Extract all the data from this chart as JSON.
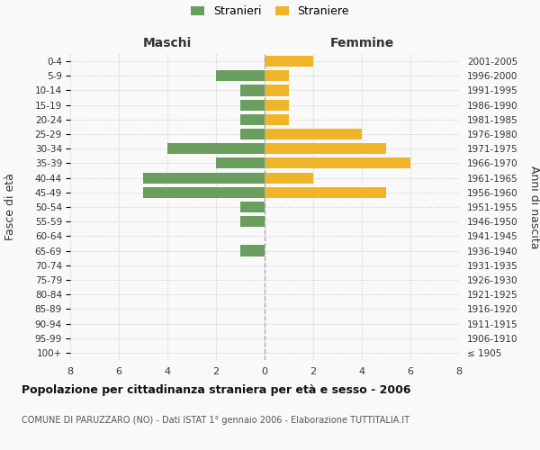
{
  "age_groups": [
    "100+",
    "95-99",
    "90-94",
    "85-89",
    "80-84",
    "75-79",
    "70-74",
    "65-69",
    "60-64",
    "55-59",
    "50-54",
    "45-49",
    "40-44",
    "35-39",
    "30-34",
    "25-29",
    "20-24",
    "15-19",
    "10-14",
    "5-9",
    "0-4"
  ],
  "birth_years": [
    "≤ 1905",
    "1906-1910",
    "1911-1915",
    "1916-1920",
    "1921-1925",
    "1926-1930",
    "1931-1935",
    "1936-1940",
    "1941-1945",
    "1946-1950",
    "1951-1955",
    "1956-1960",
    "1961-1965",
    "1966-1970",
    "1971-1975",
    "1976-1980",
    "1981-1985",
    "1986-1990",
    "1991-1995",
    "1996-2000",
    "2001-2005"
  ],
  "males": [
    0,
    0,
    0,
    0,
    0,
    0,
    0,
    1,
    0,
    1,
    1,
    5,
    5,
    2,
    4,
    1,
    1,
    1,
    1,
    2,
    0
  ],
  "females": [
    0,
    0,
    0,
    0,
    0,
    0,
    0,
    0,
    0,
    0,
    0,
    5,
    2,
    6,
    5,
    4,
    1,
    1,
    1,
    1,
    2
  ],
  "male_color": "#6a9e5e",
  "female_color": "#f0b429",
  "background_color": "#f9f9f9",
  "grid_color": "#cccccc",
  "title": "Popolazione per cittadinanza straniera per età e sesso - 2006",
  "subtitle": "COMUNE DI PARUZZARO (NO) - Dati ISTAT 1° gennaio 2006 - Elaborazione TUTTITALIA.IT",
  "xlabel_left": "Maschi",
  "xlabel_right": "Femmine",
  "ylabel_left": "Fasce di età",
  "ylabel_right": "Anni di nascita",
  "legend_males": "Stranieri",
  "legend_females": "Straniere",
  "xlim": 8,
  "bar_height": 0.75
}
